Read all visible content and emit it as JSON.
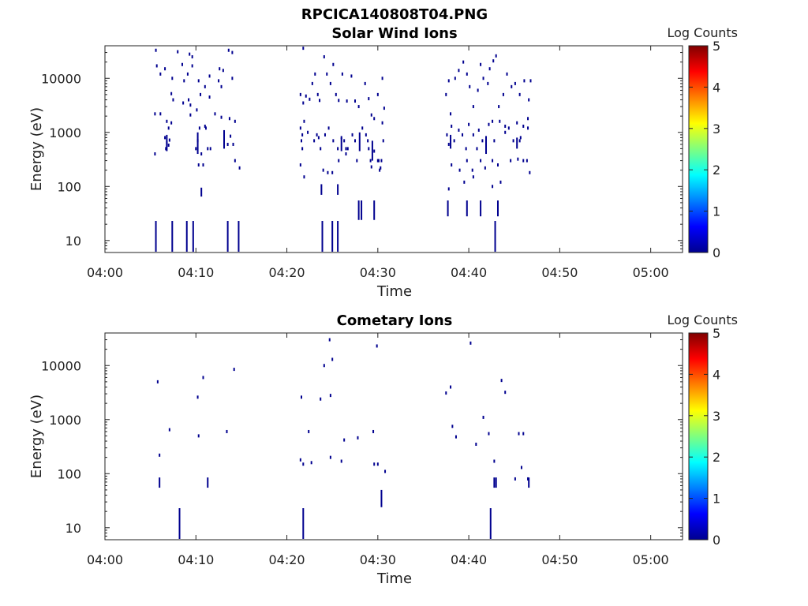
{
  "figure": {
    "title": "RPCICA140808T04.PNG"
  },
  "colors": {
    "data": "#00008f",
    "axis": "#222222"
  },
  "colorbar": {
    "label": "Log Counts",
    "ticks": [
      "0",
      "1",
      "2",
      "3",
      "4",
      "5"
    ],
    "range": [
      0,
      5
    ],
    "colormap": "jet"
  },
  "chart_data": [
    {
      "type": "heatmap",
      "title": "Solar Wind Ions",
      "xlabel": "Time",
      "ylabel": "Energy (eV)",
      "x_unit": "minutes after 04:00",
      "xlim": [
        0,
        63.5
      ],
      "xticks": [
        0,
        10,
        20,
        30,
        40,
        50,
        60
      ],
      "xtick_labels": [
        "04:00",
        "04:10",
        "04:20",
        "04:30",
        "04:40",
        "04:50",
        "05:00"
      ],
      "ylim": [
        6,
        40000
      ],
      "yscale": "log",
      "yticks": [
        10,
        100,
        1000,
        10000
      ],
      "ytick_labels": [
        "10",
        "100",
        "1000",
        "10000"
      ],
      "cells": [
        [
          5.6,
          33000
        ],
        [
          5.7,
          17000
        ],
        [
          6.1,
          12000
        ],
        [
          6.6,
          15000
        ],
        [
          7.4,
          10000
        ],
        [
          6.1,
          2200
        ],
        [
          5.5,
          2200
        ],
        [
          6.8,
          1600
        ],
        [
          7.0,
          1200
        ],
        [
          7.3,
          1500
        ],
        [
          6.6,
          800
        ],
        [
          6.8,
          650
        ],
        [
          7.1,
          720
        ],
        [
          6.7,
          500
        ],
        [
          7.0,
          580
        ],
        [
          5.5,
          400
        ],
        [
          7.3,
          5200
        ],
        [
          7.5,
          4000
        ],
        [
          8.0,
          31000
        ],
        [
          8.5,
          18000
        ],
        [
          9.3,
          28000
        ],
        [
          9.6,
          25000
        ],
        [
          9.1,
          12000
        ],
        [
          9.6,
          17000
        ],
        [
          10.3,
          9000
        ],
        [
          8.7,
          9000
        ],
        [
          9.2,
          4000
        ],
        [
          9.4,
          3200
        ],
        [
          10.1,
          2600
        ],
        [
          9.4,
          2100
        ],
        [
          10.5,
          5000
        ],
        [
          11.5,
          11000
        ],
        [
          11.0,
          7000
        ],
        [
          11.5,
          4500
        ],
        [
          12.5,
          9000
        ],
        [
          13.0,
          14000
        ],
        [
          12.1,
          2200
        ],
        [
          12.8,
          1900
        ],
        [
          13.7,
          1800
        ],
        [
          14.3,
          1600
        ],
        [
          14.0,
          10000
        ],
        [
          13.6,
          33000
        ],
        [
          14.0,
          30000
        ],
        [
          12.8,
          7000
        ],
        [
          11.0,
          1300
        ],
        [
          11.1,
          1200
        ],
        [
          10.4,
          1200
        ],
        [
          10.2,
          700
        ],
        [
          10.0,
          500
        ],
        [
          10.6,
          400
        ],
        [
          10.8,
          250
        ],
        [
          10.3,
          250
        ],
        [
          11.3,
          500
        ],
        [
          11.6,
          500
        ],
        [
          13.8,
          850
        ],
        [
          14.1,
          600
        ],
        [
          14.3,
          300
        ],
        [
          14.8,
          220
        ],
        [
          13.5,
          600
        ],
        [
          8.6,
          3500
        ],
        [
          12.6,
          15000
        ],
        [
          21.8,
          36000
        ],
        [
          21.5,
          5000
        ],
        [
          21.8,
          3500
        ],
        [
          21.9,
          1600
        ],
        [
          21.5,
          1200
        ],
        [
          21.7,
          900
        ],
        [
          21.6,
          700
        ],
        [
          21.7,
          500
        ],
        [
          21.5,
          250
        ],
        [
          21.9,
          150
        ],
        [
          22.1,
          4700
        ],
        [
          22.5,
          4100
        ],
        [
          22.8,
          8000
        ],
        [
          23.1,
          12000
        ],
        [
          23.4,
          5000
        ],
        [
          23.6,
          3900
        ],
        [
          24.1,
          25000
        ],
        [
          24.4,
          12000
        ],
        [
          24.8,
          8000
        ],
        [
          25.1,
          18000
        ],
        [
          25.4,
          5000
        ],
        [
          25.7,
          3900
        ],
        [
          26.1,
          12000
        ],
        [
          26.6,
          3800
        ],
        [
          27.1,
          11000
        ],
        [
          27.5,
          3800
        ],
        [
          27.9,
          3000
        ],
        [
          28.6,
          8000
        ],
        [
          29.0,
          4200
        ],
        [
          29.3,
          2100
        ],
        [
          29.6,
          1800
        ],
        [
          30.0,
          5000
        ],
        [
          30.5,
          10000
        ],
        [
          30.7,
          2800
        ],
        [
          30.5,
          1500
        ],
        [
          22.3,
          1000
        ],
        [
          23.0,
          700
        ],
        [
          23.3,
          900
        ],
        [
          23.5,
          800
        ],
        [
          23.7,
          500
        ],
        [
          24.2,
          900
        ],
        [
          24.6,
          1200
        ],
        [
          25.1,
          700
        ],
        [
          25.6,
          500
        ],
        [
          26.0,
          800
        ],
        [
          26.3,
          700
        ],
        [
          26.5,
          500
        ],
        [
          27.2,
          900
        ],
        [
          27.5,
          700
        ],
        [
          27.7,
          300
        ],
        [
          28.3,
          1200
        ],
        [
          28.7,
          900
        ],
        [
          28.9,
          700
        ],
        [
          29.0,
          500
        ],
        [
          29.2,
          300
        ],
        [
          29.6,
          450
        ],
        [
          30.0,
          300
        ],
        [
          30.4,
          300
        ],
        [
          30.6,
          700
        ],
        [
          30.2,
          200
        ],
        [
          29.3,
          230
        ],
        [
          26.7,
          500
        ],
        [
          25.7,
          300
        ],
        [
          24.5,
          180
        ],
        [
          24.0,
          200
        ],
        [
          25.0,
          180
        ],
        [
          30.1,
          300
        ],
        [
          30.3,
          220
        ],
        [
          26.5,
          400
        ],
        [
          37.5,
          5000
        ],
        [
          37.8,
          9000
        ],
        [
          38.0,
          2200
        ],
        [
          38.1,
          1300
        ],
        [
          37.6,
          900
        ],
        [
          37.8,
          600
        ],
        [
          38.4,
          700
        ],
        [
          38.9,
          1100
        ],
        [
          39.3,
          900
        ],
        [
          39.7,
          500
        ],
        [
          40.0,
          1400
        ],
        [
          40.5,
          900
        ],
        [
          40.9,
          500
        ],
        [
          41.1,
          1100
        ],
        [
          41.5,
          700
        ],
        [
          41.9,
          800
        ],
        [
          42.2,
          1400
        ],
        [
          42.6,
          1600
        ],
        [
          42.8,
          700
        ],
        [
          43.4,
          1600
        ],
        [
          44.0,
          1300
        ],
        [
          44.4,
          1200
        ],
        [
          44.9,
          700
        ],
        [
          45.3,
          1500
        ],
        [
          45.6,
          700
        ],
        [
          46.0,
          1300
        ],
        [
          46.5,
          1200
        ],
        [
          46.5,
          1800
        ],
        [
          38.5,
          10000
        ],
        [
          38.9,
          14000
        ],
        [
          39.4,
          20000
        ],
        [
          39.8,
          12000
        ],
        [
          40.1,
          7000
        ],
        [
          40.5,
          3000
        ],
        [
          41.0,
          6000
        ],
        [
          41.3,
          18000
        ],
        [
          41.6,
          10000
        ],
        [
          42.1,
          8000
        ],
        [
          42.3,
          15000
        ],
        [
          42.7,
          21000
        ],
        [
          43.0,
          26000
        ],
        [
          43.3,
          3000
        ],
        [
          43.8,
          5000
        ],
        [
          44.2,
          12000
        ],
        [
          44.7,
          7000
        ],
        [
          45.1,
          8000
        ],
        [
          45.6,
          5000
        ],
        [
          46.1,
          9000
        ],
        [
          46.6,
          4000
        ],
        [
          46.8,
          9000
        ],
        [
          38.1,
          250
        ],
        [
          39.0,
          200
        ],
        [
          39.8,
          300
        ],
        [
          40.5,
          150
        ],
        [
          41.3,
          300
        ],
        [
          41.8,
          220
        ],
        [
          42.6,
          300
        ],
        [
          43.2,
          250
        ],
        [
          43.5,
          120
        ],
        [
          44.6,
          300
        ],
        [
          45.4,
          320
        ],
        [
          46.0,
          300
        ],
        [
          46.4,
          300
        ],
        [
          46.7,
          180
        ],
        [
          45.7,
          800
        ],
        [
          44.0,
          1000
        ],
        [
          42.6,
          100
        ],
        [
          40.4,
          200
        ],
        [
          37.8,
          90
        ],
        [
          39.5,
          120
        ]
      ],
      "columns": [
        [
          5.6,
          6,
          23
        ],
        [
          7.4,
          6,
          23
        ],
        [
          9.0,
          6,
          23
        ],
        [
          9.7,
          6,
          23
        ],
        [
          13.5,
          6,
          23
        ],
        [
          14.7,
          6,
          23
        ],
        [
          23.9,
          6,
          23
        ],
        [
          25.0,
          6,
          23
        ],
        [
          25.6,
          6,
          23
        ],
        [
          42.9,
          6,
          23
        ],
        [
          27.9,
          24,
          55
        ],
        [
          28.2,
          24,
          55
        ],
        [
          29.6,
          24,
          55
        ],
        [
          37.7,
          28,
          55
        ],
        [
          39.8,
          28,
          55
        ],
        [
          41.3,
          28,
          55
        ],
        [
          43.2,
          28,
          55
        ],
        [
          23.8,
          70,
          110
        ],
        [
          25.6,
          70,
          110
        ],
        [
          10.6,
          65,
          95
        ],
        [
          6.8,
          450,
          900
        ],
        [
          10.2,
          400,
          1000
        ],
        [
          13.1,
          500,
          1100
        ],
        [
          26.0,
          450,
          800
        ],
        [
          28.0,
          450,
          1000
        ],
        [
          29.4,
          300,
          700
        ],
        [
          38.0,
          500,
          900
        ],
        [
          41.9,
          400,
          800
        ],
        [
          45.3,
          500,
          800
        ]
      ]
    },
    {
      "type": "heatmap",
      "title": "Cometary Ions",
      "xlabel": "Time",
      "ylabel": "Energy (eV)",
      "x_unit": "minutes after 04:00",
      "xlim": [
        0,
        63.5
      ],
      "xticks": [
        0,
        10,
        20,
        30,
        40,
        50,
        60
      ],
      "xtick_labels": [
        "04:00",
        "04:10",
        "04:20",
        "04:30",
        "04:40",
        "04:50",
        "05:00"
      ],
      "ylim": [
        6,
        40000
      ],
      "yscale": "log",
      "yticks": [
        10,
        100,
        1000,
        10000
      ],
      "ytick_labels": [
        "10",
        "100",
        "1000",
        "10000"
      ],
      "cells": [
        [
          5.8,
          5000
        ],
        [
          6.0,
          220
        ],
        [
          7.1,
          650
        ],
        [
          10.2,
          2600
        ],
        [
          10.3,
          500
        ],
        [
          10.8,
          6000
        ],
        [
          13.4,
          600
        ],
        [
          14.2,
          8500
        ],
        [
          21.6,
          2600
        ],
        [
          21.5,
          180
        ],
        [
          21.8,
          150
        ],
        [
          22.4,
          600
        ],
        [
          22.7,
          160
        ],
        [
          23.7,
          2400
        ],
        [
          24.1,
          10000
        ],
        [
          24.7,
          30000
        ],
        [
          24.8,
          200
        ],
        [
          25.0,
          13000
        ],
        [
          24.8,
          2800
        ],
        [
          26.0,
          170
        ],
        [
          26.3,
          420
        ],
        [
          27.8,
          460
        ],
        [
          29.5,
          600
        ],
        [
          29.6,
          150
        ],
        [
          29.9,
          23000
        ],
        [
          30.0,
          150
        ],
        [
          30.8,
          110
        ],
        [
          37.5,
          3100
        ],
        [
          38.0,
          4000
        ],
        [
          38.2,
          750
        ],
        [
          38.6,
          480
        ],
        [
          40.2,
          26000
        ],
        [
          40.8,
          350
        ],
        [
          41.6,
          1100
        ],
        [
          42.2,
          550
        ],
        [
          42.8,
          170
        ],
        [
          43.6,
          5300
        ],
        [
          44.0,
          3200
        ],
        [
          45.1,
          80
        ],
        [
          45.5,
          550
        ],
        [
          46.0,
          550
        ],
        [
          45.8,
          130
        ],
        [
          46.5,
          80
        ]
      ],
      "columns": [
        [
          8.2,
          6,
          23
        ],
        [
          21.8,
          6,
          23
        ],
        [
          42.4,
          6,
          23
        ],
        [
          30.4,
          24,
          50
        ],
        [
          6.0,
          55,
          85
        ],
        [
          11.3,
          55,
          85
        ],
        [
          42.8,
          55,
          85
        ],
        [
          43.0,
          55,
          85
        ],
        [
          46.6,
          55,
          85
        ]
      ]
    }
  ]
}
